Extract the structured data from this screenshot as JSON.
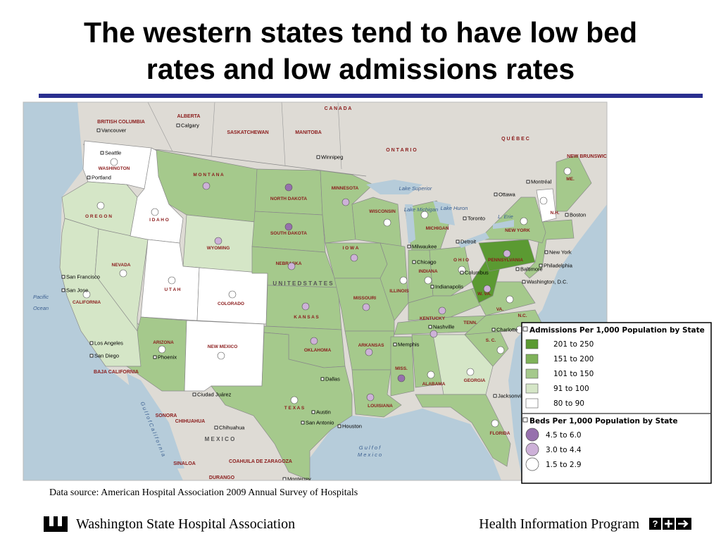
{
  "header": {
    "title_lines": [
      "The western states tend to have low bed",
      "rates and low admissions rates"
    ]
  },
  "map": {
    "regions": [
      {
        "label": "C A N A D A"
      },
      {
        "label": "O N T A R I O"
      },
      {
        "label": "Q U É B E C"
      },
      {
        "label": "BRITISH COLUMBIA"
      },
      {
        "label": "ALBERTA"
      },
      {
        "label": "SASKATCHEWAN"
      },
      {
        "label": "MANITOBA"
      },
      {
        "label": "NEW BRUNSWICK"
      },
      {
        "label": "U N I T E D   S T A T E S"
      },
      {
        "label": "M E X I C O"
      },
      {
        "label": "SONORA"
      },
      {
        "label": "CHIHUAHUA"
      },
      {
        "label": "COAHUILA DE ZARAGOZA"
      },
      {
        "label": "SINALOA"
      },
      {
        "label": "DURANGO"
      },
      {
        "label": "BAJA CALIFORNIA"
      },
      {
        "label": "Pacific"
      },
      {
        "label": "Ocean"
      },
      {
        "label": "G u l f   o f"
      },
      {
        "label": "M e x i c o"
      },
      {
        "label": "G u l f   o f   C a l i f o r n i a"
      },
      {
        "label": "Lake Superior"
      },
      {
        "label": "Lake Michigan"
      },
      {
        "label": "Lake Huron"
      },
      {
        "label": "L. Erie"
      }
    ],
    "cities": [
      {
        "label": "Vancouver"
      },
      {
        "label": "Calgary"
      },
      {
        "label": "Seattle"
      },
      {
        "label": "Portland"
      },
      {
        "label": "Winnipeg"
      },
      {
        "label": "Montréal"
      },
      {
        "label": "Ottawa"
      },
      {
        "label": "Toronto"
      },
      {
        "label": "Boston"
      },
      {
        "label": "New York"
      },
      {
        "label": "Philadelphia"
      },
      {
        "label": "Baltimore"
      },
      {
        "label": "Washington, D.C."
      },
      {
        "label": "Milwaukee"
      },
      {
        "label": "Chicago"
      },
      {
        "label": "Detroit"
      },
      {
        "label": "Columbus"
      },
      {
        "label": "Indianapolis"
      },
      {
        "label": "Nashville"
      },
      {
        "label": "Charlotte"
      },
      {
        "label": "Memphis"
      },
      {
        "label": "Jacksonville"
      },
      {
        "label": "Dallas"
      },
      {
        "label": "Austin"
      },
      {
        "label": "Houston"
      },
      {
        "label": "San Antonio"
      },
      {
        "label": "Ciudad Juárez"
      },
      {
        "label": "Chihuahua"
      },
      {
        "label": "Phoenix"
      },
      {
        "label": "San Diego"
      },
      {
        "label": "Los Angeles"
      },
      {
        "label": "San Francisco"
      },
      {
        "label": "San Jose"
      },
      {
        "label": "Monterrey"
      }
    ],
    "states": [
      {
        "label": "WASHINGTON",
        "admissions": 4,
        "beds": 2
      },
      {
        "label": "O R E G O N",
        "admissions": 3,
        "beds": 2
      },
      {
        "label": "CALIFORNIA",
        "admissions": 3,
        "beds": 2
      },
      {
        "label": "NEVADA",
        "admissions": 3,
        "beds": 2
      },
      {
        "label": "I D A H O",
        "admissions": 4,
        "beds": 2
      },
      {
        "label": "M O N T A N A",
        "admissions": 2,
        "beds": 1
      },
      {
        "label": "WYOMING",
        "admissions": 3,
        "beds": 1
      },
      {
        "label": "U T A H",
        "admissions": 4,
        "beds": 2
      },
      {
        "label": "COLORADO",
        "admissions": 4,
        "beds": 2
      },
      {
        "label": "ARIZONA",
        "admissions": 2,
        "beds": 2
      },
      {
        "label": "NEW MEXICO",
        "admissions": 4,
        "beds": 2
      },
      {
        "label": "NORTH DAKOTA",
        "admissions": 2,
        "beds": 0
      },
      {
        "label": "SOUTH DAKOTA",
        "admissions": 2,
        "beds": 0
      },
      {
        "label": "NEBRASKA",
        "admissions": 2,
        "beds": 1
      },
      {
        "label": "K A N S A S",
        "admissions": 2,
        "beds": 1
      },
      {
        "label": "OKLAHOMA",
        "admissions": 2,
        "beds": 1
      },
      {
        "label": "T E X A S",
        "admissions": 2,
        "beds": 2
      },
      {
        "label": "MINNESOTA",
        "admissions": 2,
        "beds": 1
      },
      {
        "label": "I O W A",
        "admissions": 2,
        "beds": 1
      },
      {
        "label": "MISSOURI",
        "admissions": 2,
        "beds": 1
      },
      {
        "label": "ARKANSAS",
        "admissions": 2,
        "beds": 1
      },
      {
        "label": "LOUISIANA",
        "admissions": 2,
        "beds": 1
      },
      {
        "label": "WISCONSIN",
        "admissions": 2,
        "beds": 2
      },
      {
        "label": "ILLINOIS",
        "admissions": 2,
        "beds": 2
      },
      {
        "label": "MICHIGAN",
        "admissions": 2,
        "beds": 2
      },
      {
        "label": "INDIANA",
        "admissions": 2,
        "beds": 2
      },
      {
        "label": "O H I O",
        "admissions": 2,
        "beds": 2
      },
      {
        "label": "KENTUCKY",
        "admissions": 2,
        "beds": 1
      },
      {
        "label": "TENN.",
        "admissions": 2,
        "beds": 1
      },
      {
        "label": "MISS.",
        "admissions": 2,
        "beds": 0
      },
      {
        "label": "ALABAMA",
        "admissions": 2,
        "beds": 2
      },
      {
        "label": "GEORGIA",
        "admissions": 3,
        "beds": 2
      },
      {
        "label": "FLORIDA",
        "admissions": 2,
        "beds": 2
      },
      {
        "label": "S. C.",
        "admissions": 2,
        "beds": 2
      },
      {
        "label": "N.C.",
        "admissions": 2,
        "beds": 2
      },
      {
        "label": "VA.",
        "admissions": 2,
        "beds": 2
      },
      {
        "label": "W. VA.",
        "admissions": 0,
        "beds": 1
      },
      {
        "label": "PENNSYLVANIA",
        "admissions": 0,
        "beds": 1
      },
      {
        "label": "NEW YORK",
        "admissions": 2,
        "beds": 2
      },
      {
        "label": "N.H.",
        "admissions": 4,
        "beds": 2
      },
      {
        "label": "ME.",
        "admissions": 2,
        "beds": 2
      }
    ]
  },
  "legend": {
    "admissions": {
      "title": "Admissions Per 1,000 Population by State",
      "items": [
        {
          "label": "201 to 250",
          "color": "#5b9a32"
        },
        {
          "label": "151 to 200",
          "color": "#7fb25a"
        },
        {
          "label": "101 to 150",
          "color": "#a5c98c"
        },
        {
          "label": "91 to 100",
          "color": "#d5e6c7"
        },
        {
          "label": "80 to 90",
          "color": "#ffffff"
        }
      ]
    },
    "beds": {
      "title": "Beds Per 1,000 Population by State",
      "items": [
        {
          "label": "4.5 to 6.0",
          "color": "#9670ad"
        },
        {
          "label": "3.0 to 4.4",
          "color": "#cdb1d8"
        },
        {
          "label": "1.5 to 2.9",
          "color": "#ffffff"
        }
      ]
    }
  },
  "source": "Data source:  American Hospital Association 2009 Annual Survey of Hospitals",
  "footer": {
    "organization": "Washington State Hospital Association",
    "program": "Health Information Program",
    "help": "?"
  }
}
